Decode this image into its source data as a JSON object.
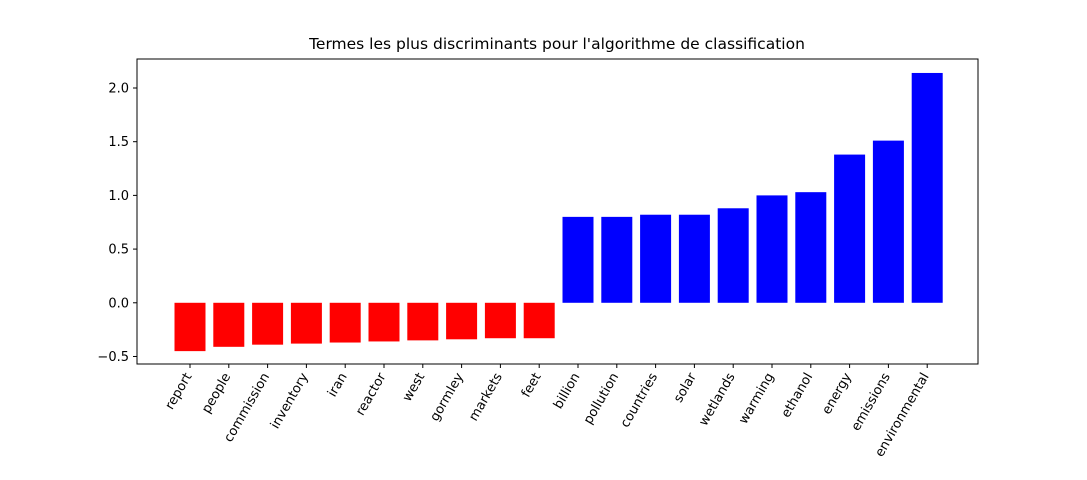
{
  "chart_data": {
    "type": "bar",
    "title": "Termes les plus discriminants pour l'algorithme de classification",
    "xlabel": "",
    "ylabel": "",
    "categories": [
      "report",
      "people",
      "commission",
      "inventory",
      "iran",
      "reactor",
      "west",
      "gormley",
      "markets",
      "feet",
      "billion",
      "pollution",
      "countries",
      "solar",
      "wetlands",
      "warming",
      "ethanol",
      "energy",
      "emissions",
      "environmental"
    ],
    "values": [
      -0.45,
      -0.41,
      -0.39,
      -0.38,
      -0.37,
      -0.36,
      -0.35,
      -0.34,
      -0.33,
      -0.33,
      0.8,
      0.8,
      0.82,
      0.82,
      0.88,
      1.0,
      1.03,
      1.38,
      1.51,
      2.14
    ],
    "ylim": [
      -0.57,
      2.27
    ],
    "yticks": [
      -0.5,
      0.0,
      0.5,
      1.0,
      1.5,
      2.0
    ],
    "ytick_labels": [
      "−0.5",
      "0.0",
      "0.5",
      "1.0",
      "1.5",
      "2.0"
    ],
    "colors": {
      "negative": "#ff0000",
      "positive": "#0000ff",
      "axes": "#000000"
    },
    "grid": false,
    "legend": "none"
  }
}
